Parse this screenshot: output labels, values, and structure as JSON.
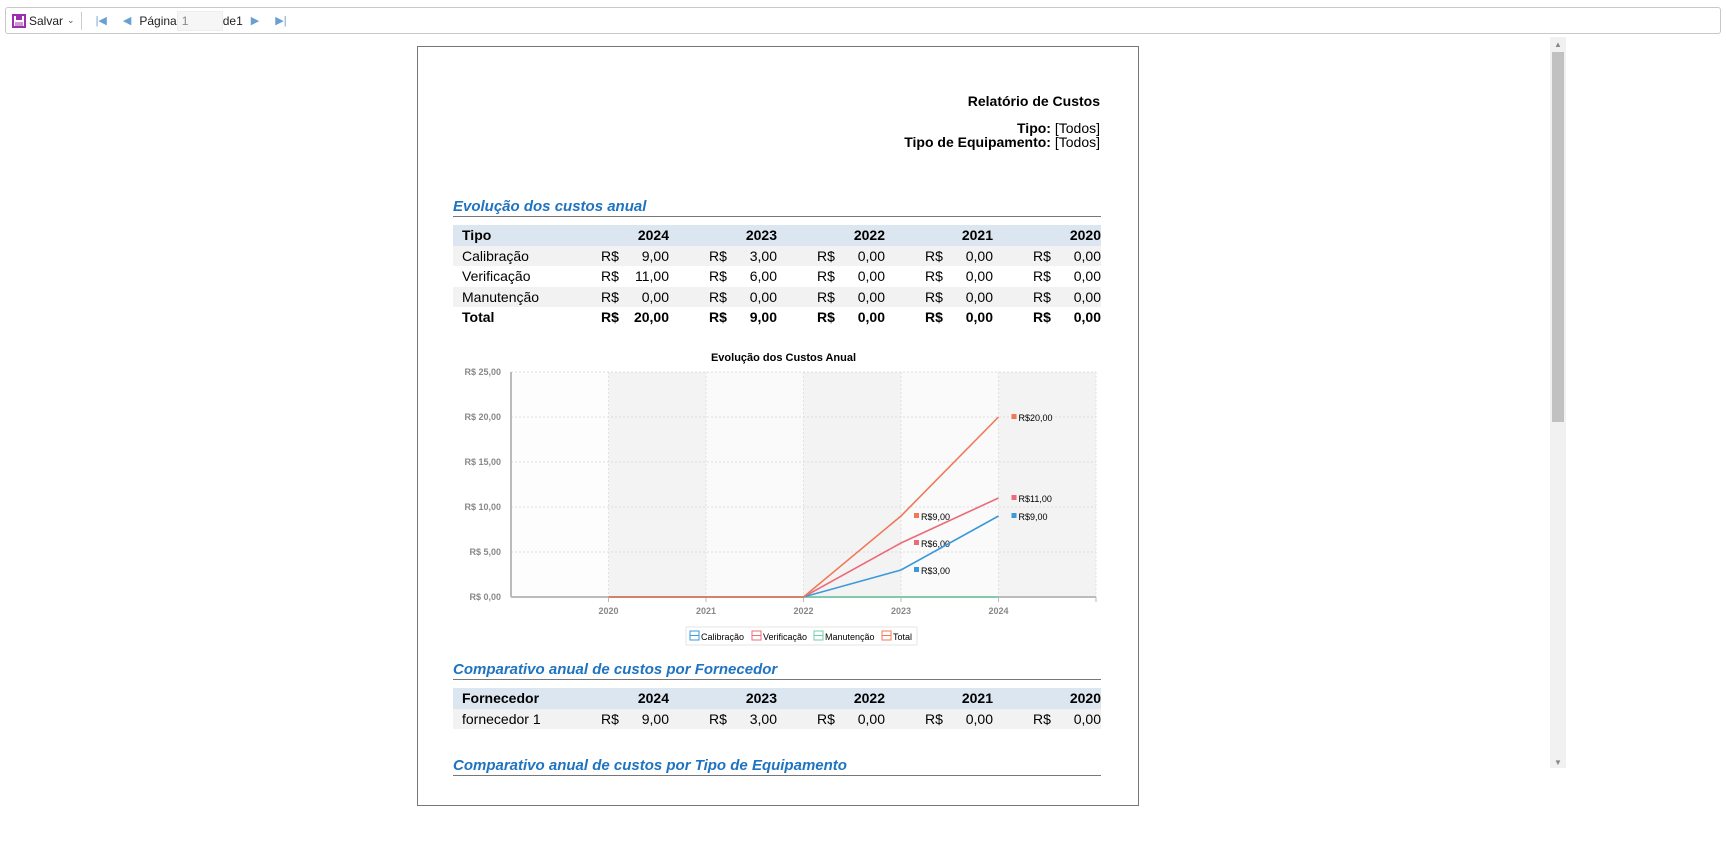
{
  "toolbar": {
    "save_label": "Salvar",
    "page_label": "Página",
    "page_value": "1",
    "of_label": "de1"
  },
  "report": {
    "title": "Relatório de Custos",
    "filters": [
      {
        "label": "Tipo:",
        "value": "[Todos]"
      },
      {
        "label": "Tipo de Equipamento:",
        "value": "[Todos]"
      }
    ]
  },
  "section1": {
    "title": "Evolução dos custos anual",
    "headers": [
      "Tipo",
      "2024",
      "2023",
      "2022",
      "2021",
      "2020"
    ],
    "rows": [
      {
        "label": "Calibração",
        "values": [
          "9,00",
          "3,00",
          "0,00",
          "0,00",
          "0,00"
        ]
      },
      {
        "label": "Verificação",
        "values": [
          "11,00",
          "6,00",
          "0,00",
          "0,00",
          "0,00"
        ]
      },
      {
        "label": "Manutenção",
        "values": [
          "0,00",
          "0,00",
          "0,00",
          "0,00",
          "0,00"
        ]
      }
    ],
    "total": {
      "label": "Total",
      "values": [
        "20,00",
        "9,00",
        "0,00",
        "0,00",
        "0,00"
      ]
    },
    "currency": "R$"
  },
  "chart_data": {
    "type": "line",
    "title": "Evolução dos Custos Anual",
    "categories": [
      "2020",
      "2021",
      "2022",
      "2023",
      "2024"
    ],
    "ylim": [
      0,
      25
    ],
    "yticks": [
      "R$ 0,00",
      "R$ 5,00",
      "R$ 10,00",
      "R$ 15,00",
      "R$ 20,00",
      "R$ 25,00"
    ],
    "series": [
      {
        "name": "Calibração",
        "color": "#3a9ad9",
        "values": [
          0,
          0,
          0,
          3,
          9
        ],
        "labels": {
          "3": "R$3,00",
          "4": "R$9,00"
        }
      },
      {
        "name": "Verificação",
        "color": "#ec6b78",
        "values": [
          0,
          0,
          0,
          6,
          11
        ],
        "labels": {
          "3": "R$6,00",
          "4": "R$11,00"
        }
      },
      {
        "name": "Manutenção",
        "color": "#6ed0a8",
        "values": [
          0,
          0,
          0,
          0,
          0
        ],
        "labels": {}
      },
      {
        "name": "Total",
        "color": "#f07856",
        "values": [
          0,
          0,
          0,
          9,
          20
        ],
        "labels": {
          "3": "R$9,00",
          "4": "R$20,00"
        }
      }
    ],
    "legend": "bottom",
    "grid": true
  },
  "section2": {
    "title": "Comparativo anual de custos por Fornecedor",
    "headers": [
      "Fornecedor",
      "2024",
      "2023",
      "2022",
      "2021",
      "2020"
    ],
    "rows": [
      {
        "label": "fornecedor 1",
        "values": [
          "9,00",
          "3,00",
          "0,00",
          "0,00",
          "0,00"
        ]
      }
    ]
  },
  "section3": {
    "title": "Comparativo anual de custos por Tipo de Equipamento"
  }
}
